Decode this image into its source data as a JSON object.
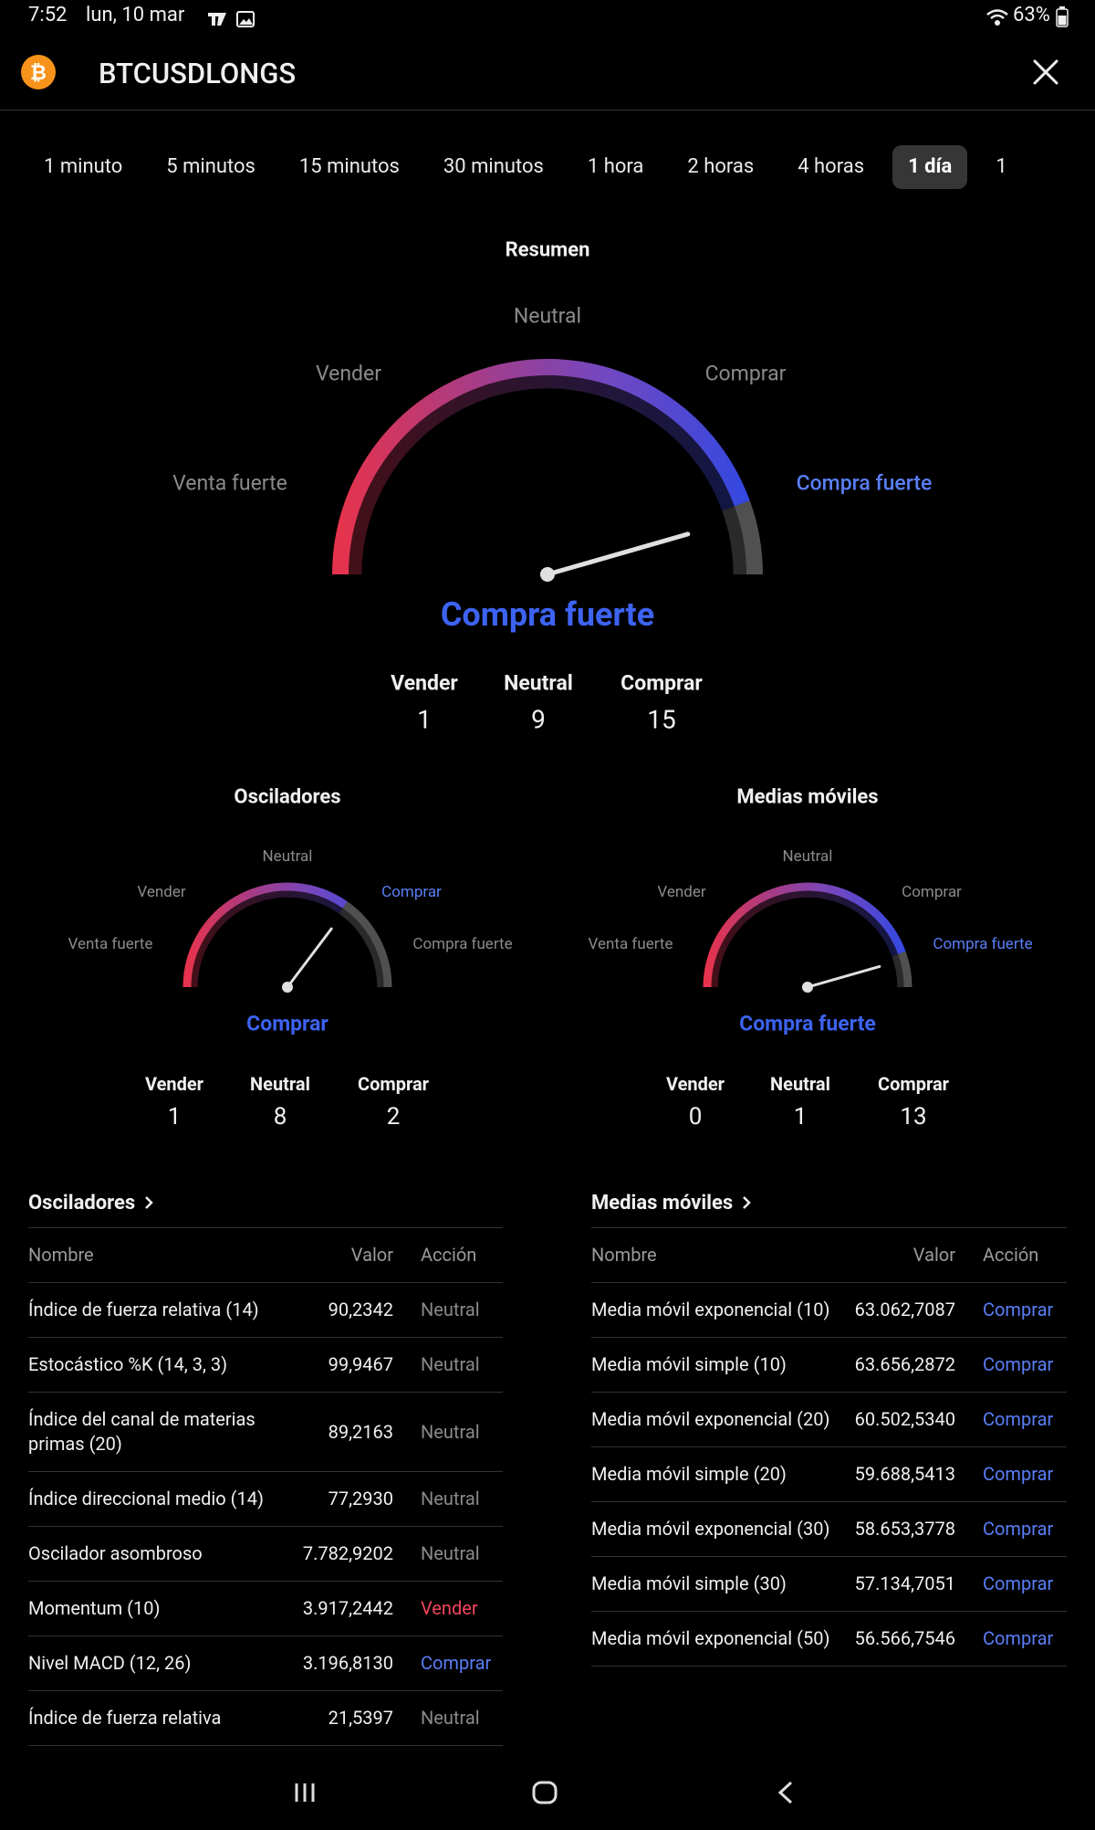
{
  "status_bar": {
    "time": "7:52",
    "date": "lun, 10 mar",
    "battery": "63%"
  },
  "header": {
    "title": "BTCUSDLONGS"
  },
  "tabs": [
    "1 minuto",
    "5 minutos",
    "15 minutos",
    "30 minutos",
    "1 hora",
    "2 horas",
    "4 horas",
    "1 día",
    "1"
  ],
  "selected_tab": 7,
  "gauges": [
    {
      "title": "Resumen",
      "scale": [
        "Venta fuerte",
        "Vender",
        "Neutral",
        "Comprar",
        "Compra fuerte"
      ],
      "verdict": "Compra fuerte",
      "counts": {
        "labels": [
          "Vender",
          "Neutral",
          "Comprar"
        ],
        "values": [
          1,
          9,
          15
        ]
      }
    },
    {
      "title": "Osciladores",
      "scale": [
        "Venta fuerte",
        "Vender",
        "Neutral",
        "Comprar",
        "Compra fuerte"
      ],
      "verdict": "Comprar",
      "counts": {
        "labels": [
          "Vender",
          "Neutral",
          "Comprar"
        ],
        "values": [
          1,
          8,
          2
        ]
      }
    },
    {
      "title": "Medias móviles",
      "scale": [
        "Venta fuerte",
        "Vender",
        "Neutral",
        "Comprar",
        "Compra fuerte"
      ],
      "verdict": "Compra fuerte",
      "counts": {
        "labels": [
          "Vender",
          "Neutral",
          "Comprar"
        ],
        "values": [
          0,
          1,
          13
        ]
      }
    }
  ],
  "tables": [
    {
      "title": "Osciladores",
      "columns": [
        "Nombre",
        "Valor",
        "Acción"
      ],
      "rows": [
        [
          "Índice de fuerza relativa (14)",
          "90,2342",
          "Neutral"
        ],
        [
          "Estocástico %K (14, 3, 3)",
          "99,9467",
          "Neutral"
        ],
        [
          "Índice del canal de materias primas (20)",
          "89,2163",
          "Neutral"
        ],
        [
          "Índice direccional medio (14)",
          "77,2930",
          "Neutral"
        ],
        [
          "Oscilador asombroso",
          "7.782,9202",
          "Neutral"
        ],
        [
          "Momentum (10)",
          "3.917,2442",
          "Vender"
        ],
        [
          "Nivel MACD (12, 26)",
          "3.196,8130",
          "Comprar"
        ],
        [
          "Índice de fuerza relativa",
          "21,5397",
          "Neutral"
        ]
      ]
    },
    {
      "title": "Medias móviles",
      "columns": [
        "Nombre",
        "Valor",
        "Acción"
      ],
      "rows": [
        [
          "Media móvil exponencial (10)",
          "63.062,7087",
          "Comprar"
        ],
        [
          "Media móvil simple (10)",
          "63.656,2872",
          "Comprar"
        ],
        [
          "Media móvil exponencial (20)",
          "60.502,5340",
          "Comprar"
        ],
        [
          "Media móvil simple (20)",
          "59.688,5413",
          "Comprar"
        ],
        [
          "Media móvil exponencial (30)",
          "58.653,3778",
          "Comprar"
        ],
        [
          "Media móvil simple (30)",
          "57.134,7051",
          "Comprar"
        ],
        [
          "Media móvil exponencial (50)",
          "56.566,7546",
          "Comprar"
        ]
      ]
    }
  ]
}
